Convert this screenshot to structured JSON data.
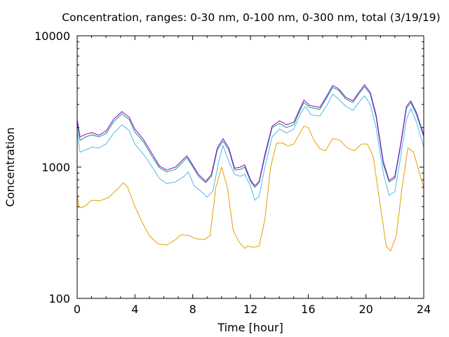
{
  "chart_data": {
    "type": "line",
    "title": "Concentration, ranges: 0-30 nm, 0-100 nm, 0-300 nm, total (3/19/19)",
    "xlabel": "Time [hour]",
    "ylabel": "Concentration",
    "xlim": [
      0,
      24
    ],
    "ylim": [
      100,
      10000
    ],
    "yscale": "log",
    "xticks": [
      0,
      4,
      8,
      12,
      16,
      20,
      24
    ],
    "xtick_labels": [
      "0",
      "4",
      "8",
      "12",
      "16",
      "20",
      "24"
    ],
    "yticks": [
      100,
      1000,
      10000
    ],
    "ytick_labels": [
      "100",
      "1000",
      "10000"
    ],
    "grid": false,
    "legend": "none",
    "series": [
      {
        "color": "#e69f00",
        "points": [
          [
            0,
            600
          ],
          [
            0.15,
            490
          ],
          [
            0.5,
            500
          ],
          [
            1,
            560
          ],
          [
            1.6,
            555
          ],
          [
            2.2,
            590
          ],
          [
            2.8,
            680
          ],
          [
            3.2,
            760
          ],
          [
            3.5,
            700
          ],
          [
            4,
            500
          ],
          [
            4.5,
            380
          ],
          [
            5,
            300
          ],
          [
            5.6,
            260
          ],
          [
            6.2,
            255
          ],
          [
            6.8,
            280
          ],
          [
            7.2,
            305
          ],
          [
            7.8,
            300
          ],
          [
            8.2,
            285
          ],
          [
            8.8,
            280
          ],
          [
            9.2,
            300
          ],
          [
            9.6,
            700
          ],
          [
            10,
            1000
          ],
          [
            10.4,
            700
          ],
          [
            10.8,
            330
          ],
          [
            11.2,
            270
          ],
          [
            11.6,
            240
          ],
          [
            11.8,
            250
          ],
          [
            12.2,
            245
          ],
          [
            12.6,
            250
          ],
          [
            13,
            400
          ],
          [
            13.4,
            1000
          ],
          [
            13.8,
            1520
          ],
          [
            14.2,
            1530
          ],
          [
            14.6,
            1450
          ],
          [
            15,
            1500
          ],
          [
            15.4,
            1800
          ],
          [
            15.7,
            2050
          ],
          [
            16,
            2000
          ],
          [
            16.4,
            1600
          ],
          [
            16.8,
            1380
          ],
          [
            17.2,
            1330
          ],
          [
            17.7,
            1650
          ],
          [
            18.2,
            1600
          ],
          [
            18.7,
            1400
          ],
          [
            19.2,
            1330
          ],
          [
            19.7,
            1500
          ],
          [
            20.1,
            1500
          ],
          [
            20.5,
            1200
          ],
          [
            21,
            500
          ],
          [
            21.4,
            250
          ],
          [
            21.7,
            230
          ],
          [
            22.1,
            300
          ],
          [
            22.5,
            700
          ],
          [
            22.9,
            1400
          ],
          [
            23.3,
            1300
          ],
          [
            23.7,
            900
          ],
          [
            24,
            700
          ]
        ]
      },
      {
        "color": "#56b4e9",
        "points": [
          [
            0,
            1900
          ],
          [
            0.2,
            1300
          ],
          [
            0.6,
            1350
          ],
          [
            1,
            1420
          ],
          [
            1.5,
            1400
          ],
          [
            2,
            1500
          ],
          [
            2.5,
            1800
          ],
          [
            3.1,
            2100
          ],
          [
            3.6,
            1900
          ],
          [
            4,
            1500
          ],
          [
            4.6,
            1250
          ],
          [
            5.2,
            1000
          ],
          [
            5.7,
            820
          ],
          [
            6.2,
            750
          ],
          [
            6.8,
            770
          ],
          [
            7.4,
            850
          ],
          [
            7.7,
            920
          ],
          [
            8.1,
            720
          ],
          [
            8.6,
            650
          ],
          [
            9,
            590
          ],
          [
            9.4,
            660
          ],
          [
            9.8,
            1100
          ],
          [
            10.1,
            1460
          ],
          [
            10.5,
            1100
          ],
          [
            10.9,
            880
          ],
          [
            11.3,
            850
          ],
          [
            11.6,
            880
          ],
          [
            12,
            720
          ],
          [
            12.3,
            560
          ],
          [
            12.6,
            600
          ],
          [
            13,
            1000
          ],
          [
            13.5,
            1700
          ],
          [
            14,
            1950
          ],
          [
            14.5,
            1820
          ],
          [
            15,
            1950
          ],
          [
            15.5,
            2600
          ],
          [
            15.8,
            2900
          ],
          [
            16.2,
            2500
          ],
          [
            16.8,
            2450
          ],
          [
            17.3,
            2950
          ],
          [
            17.7,
            3600
          ],
          [
            18.1,
            3300
          ],
          [
            18.6,
            2900
          ],
          [
            19.1,
            2700
          ],
          [
            19.5,
            3100
          ],
          [
            19.9,
            3500
          ],
          [
            20.3,
            3000
          ],
          [
            20.7,
            2000
          ],
          [
            21.2,
            900
          ],
          [
            21.6,
            610
          ],
          [
            22,
            650
          ],
          [
            22.4,
            1200
          ],
          [
            22.8,
            2300
          ],
          [
            23.1,
            2800
          ],
          [
            23.5,
            2200
          ],
          [
            24,
            1420
          ]
        ]
      },
      {
        "color": "#009e73",
        "points": [
          [
            0,
            2150
          ],
          [
            0.2,
            1600
          ],
          [
            0.6,
            1700
          ],
          [
            1,
            1760
          ],
          [
            1.5,
            1700
          ],
          [
            2,
            1800
          ],
          [
            2.5,
            2200
          ],
          [
            3.1,
            2550
          ],
          [
            3.6,
            2300
          ],
          [
            4,
            1850
          ],
          [
            4.6,
            1550
          ],
          [
            5.2,
            1200
          ],
          [
            5.7,
            990
          ],
          [
            6.2,
            920
          ],
          [
            6.8,
            960
          ],
          [
            7.4,
            1120
          ],
          [
            7.6,
            1180
          ],
          [
            7.9,
            1050
          ],
          [
            8.4,
            850
          ],
          [
            8.9,
            760
          ],
          [
            9.3,
            850
          ],
          [
            9.7,
            1350
          ],
          [
            10.1,
            1580
          ],
          [
            10.5,
            1350
          ],
          [
            10.9,
            950
          ],
          [
            11.3,
            960
          ],
          [
            11.6,
            1000
          ],
          [
            12,
            780
          ],
          [
            12.3,
            700
          ],
          [
            12.6,
            760
          ],
          [
            13,
            1200
          ],
          [
            13.5,
            2000
          ],
          [
            14,
            2150
          ],
          [
            14.5,
            2000
          ],
          [
            15,
            2100
          ],
          [
            15.5,
            2800
          ],
          [
            15.7,
            3100
          ],
          [
            16.1,
            2850
          ],
          [
            16.8,
            2750
          ],
          [
            17.3,
            3400
          ],
          [
            17.7,
            4050
          ],
          [
            18.1,
            3850
          ],
          [
            18.6,
            3300
          ],
          [
            19.1,
            3100
          ],
          [
            19.5,
            3600
          ],
          [
            19.9,
            4100
          ],
          [
            20.3,
            3600
          ],
          [
            20.7,
            2400
          ],
          [
            21.2,
            1050
          ],
          [
            21.6,
            770
          ],
          [
            22,
            820
          ],
          [
            22.4,
            1450
          ],
          [
            22.8,
            2800
          ],
          [
            23.1,
            3100
          ],
          [
            23.5,
            2500
          ],
          [
            24,
            1700
          ]
        ]
      },
      {
        "color": "#9400d3",
        "points": [
          [
            0,
            2300
          ],
          [
            0.2,
            1700
          ],
          [
            0.6,
            1780
          ],
          [
            1,
            1830
          ],
          [
            1.5,
            1750
          ],
          [
            2,
            1880
          ],
          [
            2.5,
            2300
          ],
          [
            3.1,
            2650
          ],
          [
            3.6,
            2400
          ],
          [
            4,
            1950
          ],
          [
            4.6,
            1620
          ],
          [
            5.2,
            1260
          ],
          [
            5.7,
            1020
          ],
          [
            6.2,
            950
          ],
          [
            6.8,
            1000
          ],
          [
            7.4,
            1160
          ],
          [
            7.6,
            1220
          ],
          [
            7.9,
            1080
          ],
          [
            8.4,
            880
          ],
          [
            8.9,
            780
          ],
          [
            9.3,
            880
          ],
          [
            9.7,
            1400
          ],
          [
            10.1,
            1650
          ],
          [
            10.5,
            1400
          ],
          [
            10.9,
            980
          ],
          [
            11.3,
            1000
          ],
          [
            11.6,
            1040
          ],
          [
            12,
            800
          ],
          [
            12.3,
            720
          ],
          [
            12.6,
            780
          ],
          [
            13,
            1250
          ],
          [
            13.5,
            2050
          ],
          [
            14,
            2250
          ],
          [
            14.5,
            2100
          ],
          [
            15,
            2200
          ],
          [
            15.5,
            2900
          ],
          [
            15.7,
            3250
          ],
          [
            16.1,
            2950
          ],
          [
            16.8,
            2850
          ],
          [
            17.3,
            3500
          ],
          [
            17.7,
            4200
          ],
          [
            18.1,
            3950
          ],
          [
            18.6,
            3400
          ],
          [
            19.1,
            3200
          ],
          [
            19.5,
            3700
          ],
          [
            19.9,
            4250
          ],
          [
            20.3,
            3700
          ],
          [
            20.7,
            2500
          ],
          [
            21.2,
            1100
          ],
          [
            21.6,
            790
          ],
          [
            22,
            850
          ],
          [
            22.4,
            1500
          ],
          [
            22.8,
            2900
          ],
          [
            23.1,
            3200
          ],
          [
            23.5,
            2600
          ],
          [
            24,
            1760
          ]
        ]
      }
    ]
  }
}
